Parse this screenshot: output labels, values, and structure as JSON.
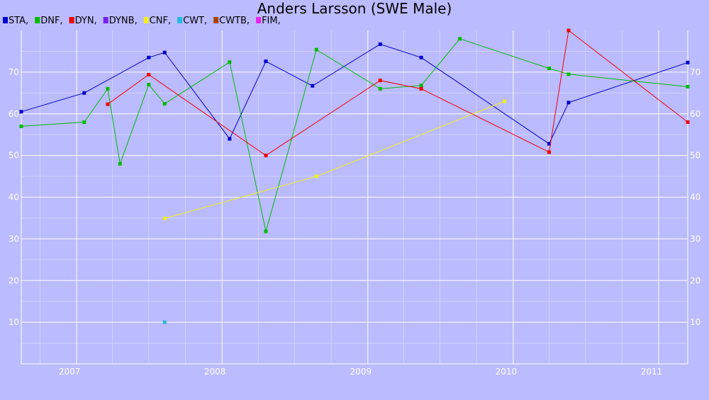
{
  "chart_data": {
    "type": "line",
    "title": "Anders Larsson (SWE Male)",
    "xlabel": "",
    "ylabel": "",
    "x_range": [
      "2006-08-15",
      "2011-03-15"
    ],
    "ylim": [
      0,
      80
    ],
    "y_ticks": [
      10,
      20,
      30,
      40,
      50,
      60,
      70
    ],
    "x_ticks": [
      {
        "label": "2007",
        "date": "2007-01-01"
      },
      {
        "label": "2008",
        "date": "2008-01-01"
      },
      {
        "label": "2009",
        "date": "2009-01-01"
      },
      {
        "label": "2010",
        "date": "2010-01-01"
      },
      {
        "label": "2011",
        "date": "2011-01-01"
      }
    ],
    "grid": true,
    "legend_position": "top-left",
    "series": [
      {
        "name": "STA",
        "legend_label": "STA,",
        "color": "#0000cc",
        "points": [
          {
            "x": "2006-08-15",
            "y": 60.5
          },
          {
            "x": "2007-01-20",
            "y": 65
          },
          {
            "x": "2007-07-01",
            "y": 73.5
          },
          {
            "x": "2007-08-10",
            "y": 74.7
          },
          {
            "x": "2008-01-20",
            "y": 54
          },
          {
            "x": "2008-04-20",
            "y": 72.6
          },
          {
            "x": "2008-08-15",
            "y": 66.7
          },
          {
            "x": "2009-02-01",
            "y": 76.7
          },
          {
            "x": "2009-05-15",
            "y": 73.5
          },
          {
            "x": "2010-04-01",
            "y": 52.8
          },
          {
            "x": "2010-05-20",
            "y": 62.7
          },
          {
            "x": "2011-03-15",
            "y": 72.3
          }
        ]
      },
      {
        "name": "DNF",
        "legend_label": "DNF,",
        "color": "#00bb00",
        "points": [
          {
            "x": "2006-08-15",
            "y": 57
          },
          {
            "x": "2007-01-20",
            "y": 58
          },
          {
            "x": "2007-03-20",
            "y": 66
          },
          {
            "x": "2007-04-20",
            "y": 48
          },
          {
            "x": "2007-07-01",
            "y": 67
          },
          {
            "x": "2007-08-10",
            "y": 62.4
          },
          {
            "x": "2008-01-20",
            "y": 72.4
          },
          {
            "x": "2008-04-20",
            "y": 31.8
          },
          {
            "x": "2008-08-25",
            "y": 75.4
          },
          {
            "x": "2009-02-01",
            "y": 66
          },
          {
            "x": "2009-05-15",
            "y": 66.8
          },
          {
            "x": "2009-08-20",
            "y": 78
          },
          {
            "x": "2010-04-01",
            "y": 70.9
          },
          {
            "x": "2010-05-20",
            "y": 69.5
          },
          {
            "x": "2011-03-15",
            "y": 66.5
          }
        ]
      },
      {
        "name": "DYN",
        "legend_label": "DYN,",
        "color": "#ee0000",
        "points": [
          {
            "x": "2007-03-20",
            "y": 62.3
          },
          {
            "x": "2007-07-01",
            "y": 69.4
          },
          {
            "x": "2008-04-20",
            "y": 50
          },
          {
            "x": "2009-02-01",
            "y": 68
          },
          {
            "x": "2009-05-15",
            "y": 66
          },
          {
            "x": "2010-04-01",
            "y": 50.8
          },
          {
            "x": "2010-05-20",
            "y": 80
          },
          {
            "x": "2011-03-15",
            "y": 58
          }
        ]
      },
      {
        "name": "DYNB",
        "legend_label": "DYNB,",
        "color": "#7722ee",
        "points": []
      },
      {
        "name": "CNF",
        "legend_label": "CNF,",
        "color": "#eeee22",
        "points": [
          {
            "x": "2007-08-10",
            "y": 34.9
          },
          {
            "x": "2008-08-25",
            "y": 45
          },
          {
            "x": "2009-12-10",
            "y": 63
          }
        ]
      },
      {
        "name": "CWT",
        "legend_label": "CWT,",
        "color": "#22bbdd",
        "points": [
          {
            "x": "2007-08-10",
            "y": 10
          }
        ]
      },
      {
        "name": "CWTB",
        "legend_label": "CWTB,",
        "color": "#aa4400",
        "points": []
      },
      {
        "name": "FIM",
        "legend_label": "FIM,",
        "color": "#ee22ee",
        "points": []
      }
    ]
  }
}
